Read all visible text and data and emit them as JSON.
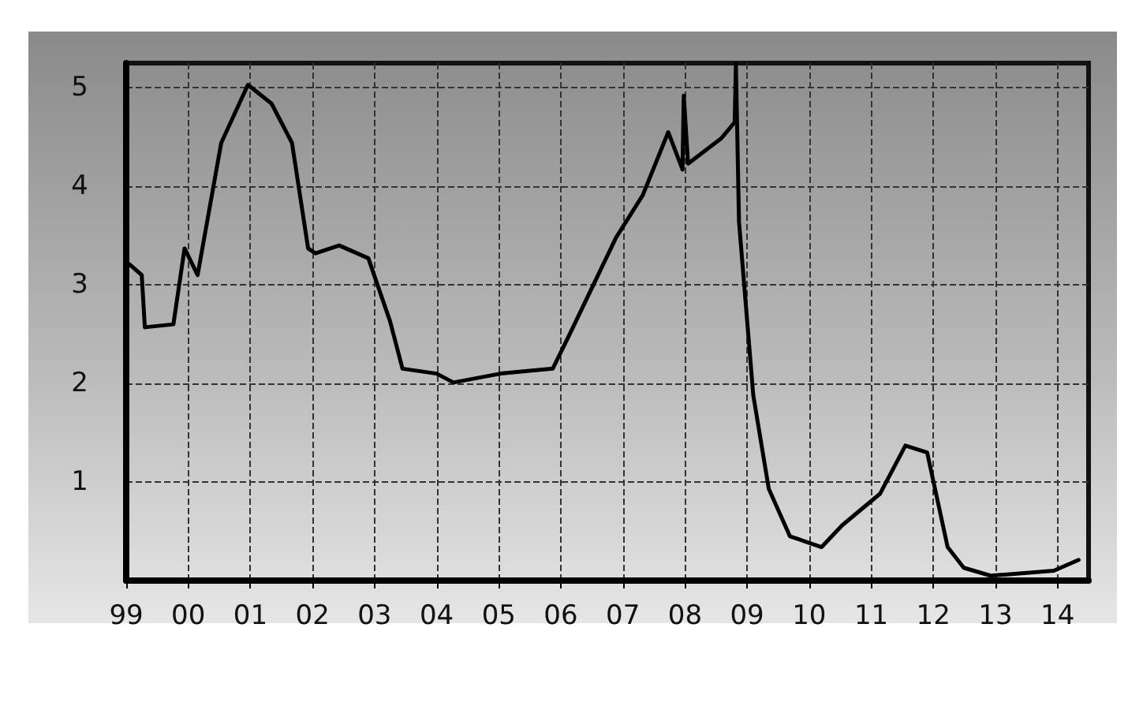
{
  "chart_data": {
    "type": "line",
    "x": [
      1999.05,
      1999.25,
      1999.3,
      1999.76,
      1999.94,
      2000.15,
      2000.53,
      2000.96,
      2001.34,
      2001.67,
      2001.93,
      2002.05,
      2002.43,
      2002.9,
      2003.25,
      2003.45,
      2004.0,
      2004.27,
      2005.03,
      2005.87,
      2006.12,
      2006.89,
      2007.32,
      2007.73,
      2007.96,
      2007.98,
      2008.05,
      2008.59,
      2008.8,
      2008.82,
      2008.87,
      2009.1,
      2009.35,
      2009.69,
      2010.2,
      2010.53,
      2011.14,
      2011.55,
      2011.9,
      2012.23,
      2012.49,
      2012.92,
      2013.94,
      2014.34
    ],
    "series": [
      {
        "color": "#000000",
        "values": [
          3.21,
          3.1,
          2.57,
          2.6,
          3.37,
          3.1,
          4.44,
          5.03,
          4.84,
          4.44,
          3.37,
          3.32,
          3.4,
          3.27,
          2.63,
          2.15,
          2.1,
          2.01,
          2.1,
          2.15,
          2.47,
          3.48,
          3.91,
          4.55,
          4.17,
          4.92,
          4.23,
          4.49,
          4.65,
          5.24,
          3.64,
          1.88,
          0.93,
          0.45,
          0.34,
          0.56,
          0.88,
          1.37,
          1.3,
          0.34,
          0.13,
          0.05,
          0.1,
          0.21
        ]
      }
    ],
    "xlim": [
      1999,
      2014.5
    ],
    "xticks": [
      {
        "value": 1999,
        "label": "99"
      },
      {
        "value": 2000,
        "label": "00"
      },
      {
        "value": 2001,
        "label": "01"
      },
      {
        "value": 2002,
        "label": "02"
      },
      {
        "value": 2003,
        "label": "03"
      },
      {
        "value": 2004,
        "label": "04"
      },
      {
        "value": 2005,
        "label": "05"
      },
      {
        "value": 2006,
        "label": "06"
      },
      {
        "value": 2007,
        "label": "07"
      },
      {
        "value": 2008,
        "label": "08"
      },
      {
        "value": 2009,
        "label": "09"
      },
      {
        "value": 2010,
        "label": "10"
      },
      {
        "value": 2011,
        "label": "11"
      },
      {
        "value": 2012,
        "label": "12"
      },
      {
        "value": 2013,
        "label": "13"
      },
      {
        "value": 2014,
        "label": "14"
      }
    ],
    "ylim": [
      0,
      5.25
    ],
    "yticks": [
      {
        "value": 0,
        "label": null
      },
      1,
      2,
      3,
      4,
      5
    ],
    "grid": true,
    "marker": "none",
    "line_style": "solid"
  }
}
